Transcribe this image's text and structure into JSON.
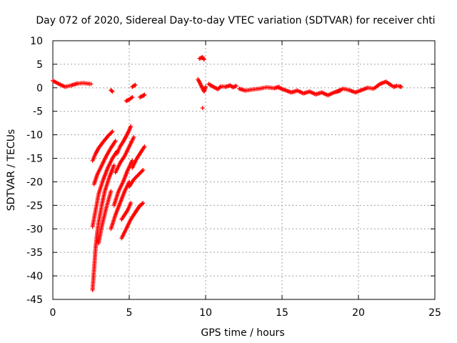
{
  "chart_data": {
    "type": "scatter",
    "title": "Day 072 of 2020, Sidereal Day-to-day VTEC variation (SDTVAR) for receiver chti",
    "xlabel": "GPS time / hours",
    "ylabel": "SDTVAR / TECUs",
    "xlim": [
      0,
      25
    ],
    "ylim": [
      -45,
      10
    ],
    "xticks": [
      0,
      5,
      10,
      15,
      20,
      25
    ],
    "yticks": [
      10,
      5,
      0,
      -5,
      -10,
      -15,
      -20,
      -25,
      -30,
      -35,
      -40,
      -45
    ],
    "grid": true,
    "marker": "+",
    "series_color": "#ff0000",
    "series": [
      {
        "name": "SDTVAR",
        "segments": [
          {
            "x": [
              0.0,
              0.4,
              0.8,
              1.2,
              1.6,
              2.0,
              2.5
            ],
            "y": [
              1.5,
              0.8,
              0.2,
              0.5,
              0.9,
              1.0,
              0.8
            ]
          },
          {
            "x": [
              2.6,
              2.8,
              3.0,
              3.3,
              3.6,
              3.9
            ],
            "y": [
              -15.5,
              -14.0,
              -12.8,
              -11.5,
              -10.3,
              -9.3
            ]
          },
          {
            "x": [
              2.7,
              2.9,
              3.2,
              3.5,
              3.8,
              4.1
            ],
            "y": [
              -20.5,
              -18.5,
              -16.5,
              -14.5,
              -12.8,
              -11.3
            ]
          },
          {
            "x": [
              2.6,
              2.8,
              3.0,
              3.3,
              3.6,
              3.9,
              4.2
            ],
            "y": [
              -29.5,
              -26.0,
              -22.5,
              -19.5,
              -17.0,
              -15.0,
              -13.5
            ]
          },
          {
            "x": [
              2.6,
              2.7,
              2.8,
              2.9,
              3.0,
              3.2,
              3.4,
              3.7,
              4.0
            ],
            "y": [
              -43.0,
              -38.5,
              -34.0,
              -31.0,
              -28.5,
              -25.0,
              -22.0,
              -19.0,
              -16.5
            ]
          },
          {
            "x": [
              3.0,
              3.2,
              3.5,
              3.8
            ],
            "y": [
              -33.0,
              -29.5,
              -25.5,
              -22.0
            ]
          },
          {
            "x": [
              4.2,
              4.4,
              4.6,
              4.8,
              5.0,
              5.1
            ],
            "y": [
              -14.0,
              -12.5,
              -11.5,
              -10.3,
              -9.0,
              -8.2
            ]
          },
          {
            "x": [
              4.1,
              4.4,
              4.7,
              5.0,
              5.3
            ],
            "y": [
              -18.0,
              -16.0,
              -14.5,
              -12.5,
              -10.5
            ]
          },
          {
            "x": [
              4.0,
              4.3,
              4.6,
              4.9,
              5.2
            ],
            "y": [
              -25.0,
              -22.0,
              -20.0,
              -17.5,
              -15.5
            ]
          },
          {
            "x": [
              3.8,
              4.1,
              4.4,
              4.7,
              5.0
            ],
            "y": [
              -30.0,
              -27.0,
              -24.5,
              -22.0,
              -20.0
            ]
          },
          {
            "x": [
              4.5,
              4.7,
              4.9,
              5.1
            ],
            "y": [
              -28.0,
              -27.0,
              -26.0,
              -24.5
            ]
          },
          {
            "x": [
              4.5,
              4.8,
              5.1,
              5.4,
              5.7
            ],
            "y": [
              -32.0,
              -30.0,
              -28.0,
              -26.5,
              -25.0
            ]
          },
          {
            "x": [
              5.0,
              5.3,
              5.6,
              5.9
            ],
            "y": [
              -21.0,
              -19.5,
              -18.5,
              -17.5
            ]
          },
          {
            "x": [
              5.2,
              5.5,
              5.8,
              6.0
            ],
            "y": [
              -17.0,
              -15.0,
              -13.5,
              -12.5
            ]
          },
          {
            "x": [
              5.3,
              5.6,
              5.9
            ],
            "y": [
              -27.0,
              -25.5,
              -24.5
            ]
          },
          {
            "x": [
              3.8,
              3.9
            ],
            "y": [
              -0.5,
              -0.8
            ]
          },
          {
            "x": [
              4.8,
              5.0,
              5.2
            ],
            "y": [
              -2.8,
              -2.5,
              -2.0
            ]
          },
          {
            "x": [
              5.2,
              5.4
            ],
            "y": [
              0.2,
              0.6
            ]
          },
          {
            "x": [
              5.7,
              5.9,
              6.0
            ],
            "y": [
              -2.0,
              -1.7,
              -1.5
            ]
          },
          {
            "x": [
              9.6,
              9.8,
              9.9
            ],
            "y": [
              6.2,
              6.5,
              6.0
            ]
          },
          {
            "x": [
              9.5,
              9.7,
              9.9,
              10.0
            ],
            "y": [
              1.8,
              0.5,
              -0.8,
              0.2
            ]
          },
          {
            "x": [
              9.8
            ],
            "y": [
              -4.3
            ]
          },
          {
            "x": [
              10.2,
              10.5,
              10.8,
              11.0,
              11.3,
              11.6,
              11.8,
              12.0
            ],
            "y": [
              0.8,
              0.2,
              -0.3,
              0.3,
              0.2,
              0.5,
              0.1,
              0.4
            ]
          },
          {
            "x": [
              12.2,
              12.6,
              13.0,
              13.5,
              14.0,
              14.5,
              14.8
            ],
            "y": [
              -0.2,
              -0.6,
              -0.4,
              -0.2,
              0.1,
              -0.1,
              0.2
            ]
          },
          {
            "x": [
              14.8,
              15.2,
              15.6,
              16.0,
              16.4,
              16.8,
              17.2,
              17.6,
              18.0,
              18.4,
              18.8
            ],
            "y": [
              0.0,
              -0.5,
              -1.0,
              -0.6,
              -1.2,
              -0.8,
              -1.4,
              -1.0,
              -1.6,
              -1.0,
              -0.6
            ]
          },
          {
            "x": [
              18.6,
              19.0,
              19.4,
              19.8,
              20.2,
              20.6,
              21.0,
              21.4,
              21.8,
              22.2
            ],
            "y": [
              -0.8,
              -0.2,
              -0.5,
              -1.0,
              -0.5,
              0.0,
              -0.2,
              0.8,
              1.3,
              0.4
            ]
          },
          {
            "x": [
              22.3,
              22.5,
              22.7,
              22.8
            ],
            "y": [
              0.2,
              0.4,
              0.3,
              0.2
            ]
          }
        ]
      }
    ]
  }
}
